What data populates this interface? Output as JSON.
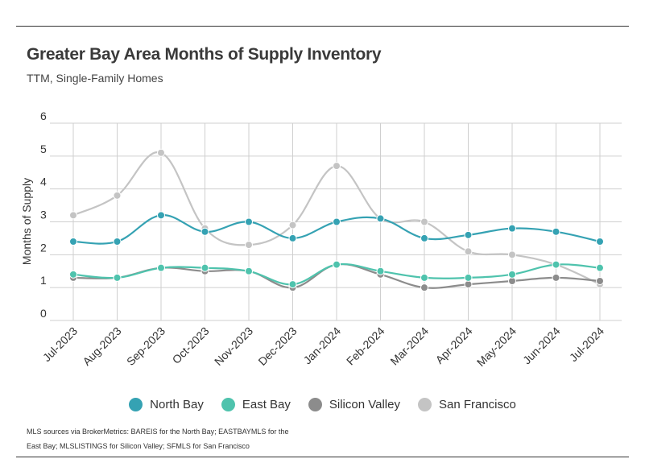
{
  "chart_data": {
    "type": "line",
    "title": "Greater Bay Area Months of Supply Inventory",
    "subtitle": "TTM, Single-Family Homes",
    "ylabel": "Months of Supply",
    "xlabel": "",
    "ylim": [
      0,
      6
    ],
    "yticks": [
      "0",
      "1",
      "2",
      "3",
      "4",
      "5",
      "6"
    ],
    "grid": true,
    "legend_position": "bottom",
    "categories": [
      "Jul-2023",
      "Aug-2023",
      "Sep-2023",
      "Oct-2023",
      "Nov-2023",
      "Dec-2023",
      "Jan-2024",
      "Feb-2024",
      "Mar-2024",
      "Apr-2024",
      "May-2024",
      "Jun-2024",
      "Jul-2024"
    ],
    "series": [
      {
        "name": "North Bay",
        "color": "#35a2b3",
        "values": [
          2.4,
          2.4,
          3.2,
          2.7,
          3.0,
          2.5,
          3.0,
          3.1,
          2.5,
          2.6,
          2.8,
          2.7,
          2.4
        ]
      },
      {
        "name": "East Bay",
        "color": "#4fc3ad",
        "values": [
          1.4,
          1.3,
          1.6,
          1.6,
          1.5,
          1.1,
          1.7,
          1.5,
          1.3,
          1.3,
          1.4,
          1.7,
          1.6
        ]
      },
      {
        "name": "Silicon Valley",
        "color": "#8c8c8c",
        "values": [
          1.3,
          1.3,
          1.6,
          1.5,
          1.5,
          1.0,
          1.7,
          1.4,
          1.0,
          1.1,
          1.2,
          1.3,
          1.2
        ]
      },
      {
        "name": "San Francisco",
        "color": "#c4c4c4",
        "values": [
          3.2,
          3.8,
          5.1,
          2.8,
          2.3,
          2.9,
          4.7,
          3.1,
          3.0,
          2.1,
          2.0,
          1.7,
          1.1
        ]
      }
    ],
    "source_note": "MLS sources via BrokerMetrics: BAREIS for the North Bay; EASTBAYMLS for the East Bay; MLSLISTINGS for Silicon Valley; SFMLS for San Francisco"
  }
}
